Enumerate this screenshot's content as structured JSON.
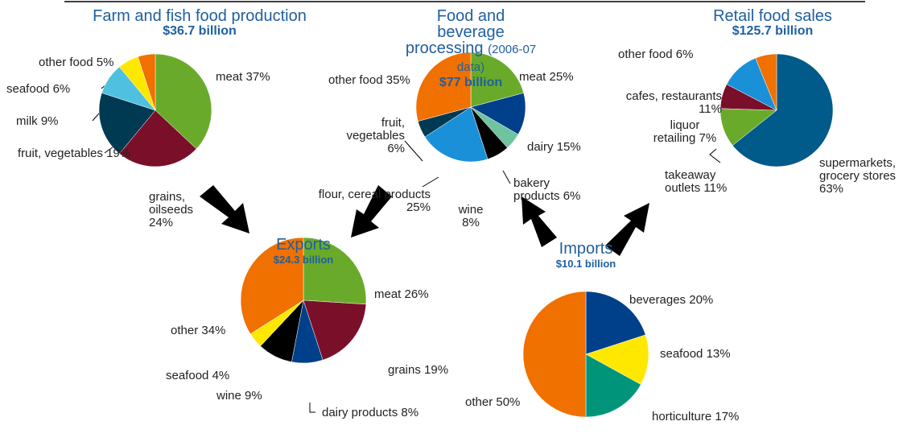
{
  "chart_data": [
    {
      "type": "pie",
      "title": "Farm and fish food production",
      "subtitle": "$36.7 billion",
      "categories": [
        "meat",
        "grains, oilseeds",
        "fruit, vegetables",
        "milk",
        "seafood",
        "other food"
      ],
      "values": [
        37,
        24,
        19,
        9,
        6,
        5
      ],
      "value_labels": [
        "37%",
        "24%",
        "19%",
        "9%",
        "6%",
        "5%"
      ],
      "colors": [
        "#6aaa2a",
        "#7a0f2a",
        "#003a52",
        "#4fc0e0",
        "#ffe800",
        "#f07000"
      ]
    },
    {
      "type": "pie",
      "title": "Food and beverage processing",
      "title_note": "(2006-07 data)",
      "subtitle": "$77 billion",
      "categories": [
        "meat",
        "dairy",
        "bakery products",
        "wine",
        "flour, cereal products",
        "fruit, vegetables",
        "other food"
      ],
      "values": [
        25,
        15,
        6,
        8,
        25,
        6,
        35
      ],
      "value_labels": [
        "25%",
        "15%",
        "6%",
        "8%",
        "25%",
        "6%",
        "35%"
      ],
      "colors": [
        "#6aaa2a",
        "#003f8a",
        "#6fc4a0",
        "#000000",
        "#1a90d8",
        "#003a52",
        "#f07000"
      ]
    },
    {
      "type": "pie",
      "title": "Retail food sales",
      "subtitle": "$125.7 billion",
      "categories": [
        "supermarkets, grocery stores",
        "takeaway outlets",
        "liquor retailing",
        "cafes, restaurants",
        "other food"
      ],
      "values": [
        63,
        11,
        7,
        11,
        6
      ],
      "value_labels": [
        "63%",
        "11%",
        "7%",
        "11%",
        "6%"
      ],
      "colors": [
        "#005a8a",
        "#6aaa2a",
        "#7a0f2a",
        "#1a90d8",
        "#f07000"
      ]
    },
    {
      "type": "pie",
      "title": "Exports",
      "subtitle": "$24.3 billion",
      "categories": [
        "meat",
        "grains",
        "dairy products",
        "wine",
        "seafood",
        "other"
      ],
      "values": [
        26,
        19,
        8,
        9,
        4,
        34
      ],
      "value_labels": [
        "26%",
        "19%",
        "8%",
        "9%",
        "4%",
        "34%"
      ],
      "colors": [
        "#6aaa2a",
        "#7a0f2a",
        "#003f8a",
        "#000000",
        "#ffe800",
        "#f07000"
      ]
    },
    {
      "type": "pie",
      "title": "Imports",
      "subtitle": "$10.1 billion",
      "categories": [
        "beverages",
        "seafood",
        "horticulture",
        "other"
      ],
      "values": [
        20,
        13,
        17,
        50
      ],
      "value_labels": [
        "20%",
        "13%",
        "17%",
        "50%"
      ],
      "colors": [
        "#003f8a",
        "#ffe800",
        "#00957a",
        "#f07000"
      ]
    }
  ]
}
